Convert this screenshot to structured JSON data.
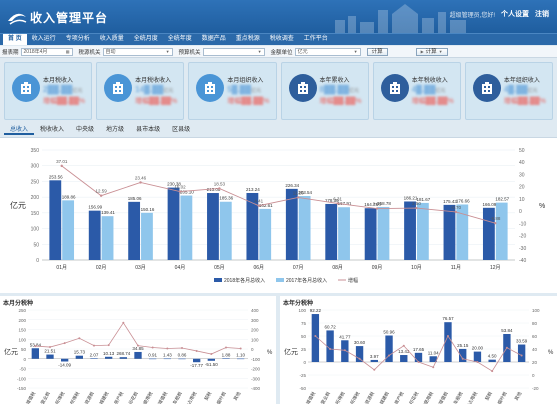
{
  "app": {
    "title": "收入管理平台",
    "welcome": "超级管理员,您好!",
    "settings_label": "个人设置",
    "logout_label": "注销"
  },
  "nav": {
    "items": [
      "首 页",
      "收入运行",
      "专项分析",
      "收入质量",
      "全统月度",
      "全统年度",
      "数据产品",
      "重点税源",
      "税收调查",
      "工作平台"
    ],
    "active_index": 0
  },
  "filters": {
    "period_label": "报表期",
    "period_value": "2018年4月",
    "tax_org_label": "税源机关",
    "tax_org_value": "自动",
    "budget_org_label": "预算机关",
    "budget_org_value": "",
    "unit_label": "金额单位",
    "unit_value": "亿元",
    "calc_btn": "计算",
    "calc_btn2": "计算"
  },
  "cards": [
    {
      "title": "本月税收入",
      "value": "2██.██",
      "unit": "亿元",
      "pct": "增幅██.██%"
    },
    {
      "title": "本月税收收入",
      "value": "14█.██",
      "unit": "亿元",
      "pct": "增幅██.██%"
    },
    {
      "title": "本月组织收入",
      "value": "5█.██",
      "unit": "亿元",
      "pct": "增幅██.██%"
    },
    {
      "title": "本年累收入",
      "value": "8██.██",
      "unit": "亿元",
      "pct": "增幅██.██%"
    },
    {
      "title": "本年税收收入",
      "value": "4█.██",
      "unit": "亿元",
      "pct": "增幅██.██%"
    },
    {
      "title": "本年组织收入",
      "value": "4█.██",
      "unit": "亿元",
      "pct": "增幅██.██%"
    }
  ],
  "tabs": [
    "总收入",
    "税收收入",
    "中央级",
    "地方级",
    "县市本级",
    "区县级"
  ],
  "icons": {
    "logo": "logo-icon",
    "card_icon": "building-icon",
    "calendar": "calendar-icon"
  },
  "colors": {
    "brand": "#1f5e9f",
    "bar2018": "#2b5aa8",
    "bar2017": "#8fc6ec",
    "growth": "#c98f94"
  },
  "chart_data": [
    {
      "type": "bar",
      "title": "",
      "ylabel": "亿元",
      "y2label": "%",
      "ylim": [
        0,
        350
      ],
      "y2lim": [
        -40,
        50
      ],
      "categories": [
        "01月",
        "02月",
        "03月",
        "04月",
        "05月",
        "06月",
        "07月",
        "08月",
        "09月",
        "10月",
        "11月",
        "12月"
      ],
      "series": [
        {
          "name": "2018年各月总收入",
          "kind": "bar",
          "values": [
            253.56,
            156.99,
            185.06,
            230.38,
            213.08,
            213.24,
            226.34,
            178.35,
            164.78,
            186.21,
            175.43,
            166.09
          ]
        },
        {
          "name": "2017年各月总收入",
          "kind": "bar",
          "values": [
            189.86,
            139.41,
            150.16,
            205.1,
            185.36,
            162.61,
            203.54,
            167.91,
            168.78,
            181.67,
            176.66,
            182.57
          ]
        },
        {
          "name": "增幅",
          "kind": "line",
          "values": [
            37.01,
            12.59,
            23.46,
            16.02,
            18.53,
            4.41,
            11.2,
            6.31,
            2.05,
            2.5,
            -0.7,
            -9.88
          ]
        }
      ]
    },
    {
      "type": "bar",
      "title": "本月分税种",
      "ylabel": "亿元",
      "y2label": "%",
      "ylim": [
        -150,
        250
      ],
      "y2lim": [
        -400,
        400
      ],
      "categories": [
        "增值税",
        "营业税",
        "企业所得税",
        "个人所得税",
        "资源税",
        "城建税",
        "房产税",
        "印花税",
        "土地使用税",
        "土地增值税",
        "车船税",
        "耕地占用税",
        "契税",
        "烟叶税",
        "其他"
      ],
      "value_labels": [
        "53.84",
        "21.51",
        "-14.09",
        "15.73",
        "2.07",
        "10.13",
        "268.74",
        "34.85",
        "0.91",
        "1.43",
        "0.86",
        "-17.77",
        "-51.50",
        "1.88",
        "1.10"
      ],
      "series": [
        {
          "name": "本期",
          "kind": "bar",
          "values": [
            53.84,
            21.51,
            -14.09,
            15.73,
            2.07,
            10.13,
            8.0,
            34.85,
            0.91,
            1.43,
            0.86,
            -17.77,
            -10.5,
            1.88,
            1.1
          ]
        },
        {
          "name": "增幅",
          "kind": "line",
          "values": [
            30,
            20,
            60,
            110,
            35,
            40,
            268.74,
            35,
            15,
            5,
            10,
            -20,
            -51.5,
            15,
            5
          ]
        }
      ]
    },
    {
      "type": "bar",
      "title": "本年分税种",
      "ylabel": "亿元",
      "y2label": "%",
      "ylim": [
        -50,
        100
      ],
      "y2lim": [
        -20,
        100
      ],
      "categories": [
        "增值税",
        "营业税",
        "企业所得税",
        "个人所得税",
        "资源税",
        "城建税",
        "房产税",
        "印花税",
        "土地使用税",
        "土地增值税",
        "车船税",
        "耕地占用税",
        "契税",
        "烟叶税",
        "其他"
      ],
      "value_labels": [
        "92.22",
        "60.72",
        "41.77",
        "30.60",
        "3.97",
        "50.96",
        "13.43",
        "17.65",
        "11.04",
        "76.57",
        "25.15",
        "20.00",
        "4.50",
        "53.84",
        "33.59"
      ],
      "series": [
        {
          "name": "本期",
          "kind": "bar",
          "values": [
            92.22,
            60.72,
            41.77,
            30.6,
            3.97,
            50.96,
            13.43,
            17.65,
            11.04,
            76.57,
            25.15,
            20.0,
            4.5,
            53.84,
            33.59
          ]
        },
        {
          "name": "增幅",
          "kind": "line",
          "values": [
            60,
            40,
            38,
            25,
            8,
            30,
            45,
            20,
            12,
            60,
            25,
            20,
            6,
            42,
            30
          ]
        }
      ]
    }
  ]
}
